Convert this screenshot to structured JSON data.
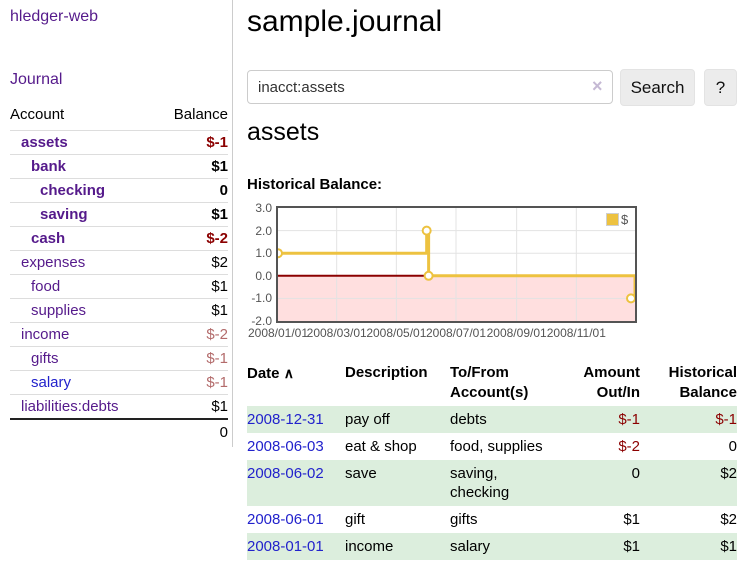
{
  "sidebar": {
    "brand": "hledger-web",
    "journal_label": "Journal",
    "accounts_table": {
      "headers": {
        "account": "Account",
        "balance": "Balance"
      },
      "rows": [
        {
          "name": "assets",
          "level": 1,
          "bold": true,
          "link_color": "purple",
          "balance": "$-1",
          "balance_color": "darkred"
        },
        {
          "name": "bank",
          "level": 2,
          "bold": true,
          "link_color": "purple",
          "balance": "$1",
          "balance_color": "black"
        },
        {
          "name": "checking",
          "level": 3,
          "bold": true,
          "link_color": "purple",
          "balance": "0",
          "balance_color": "black"
        },
        {
          "name": "saving",
          "level": 3,
          "bold": true,
          "link_color": "purple",
          "balance": "$1",
          "balance_color": "black"
        },
        {
          "name": "cash",
          "level": 2,
          "bold": true,
          "link_color": "purple",
          "balance": "$-2",
          "balance_color": "darkred"
        },
        {
          "name": "expenses",
          "level": 1,
          "bold": false,
          "link_color": "purple",
          "balance": "$2",
          "balance_color": "black"
        },
        {
          "name": "food",
          "level": 2,
          "bold": false,
          "link_color": "purple",
          "balance": "$1",
          "balance_color": "black"
        },
        {
          "name": "supplies",
          "level": 2,
          "bold": false,
          "link_color": "purple",
          "balance": "$1",
          "balance_color": "black"
        },
        {
          "name": "income",
          "level": 1,
          "bold": false,
          "link_color": "purple",
          "balance": "$-2",
          "balance_color": "rosy"
        },
        {
          "name": "gifts",
          "level": 2,
          "bold": false,
          "link_color": "purple",
          "balance": "$-1",
          "balance_color": "rosy"
        },
        {
          "name": "salary",
          "level": 2,
          "bold": false,
          "link_color": "blue",
          "balance": "$-1",
          "balance_color": "rosy"
        },
        {
          "name": "liabilities:debts",
          "level": 1,
          "bold": false,
          "link_color": "purple",
          "balance": "$1",
          "balance_color": "black"
        }
      ],
      "total": "0"
    }
  },
  "main": {
    "title": "sample.journal",
    "search": {
      "value": "inacct:assets",
      "clear_icon": "×",
      "button_label": "Search",
      "help_label": "?"
    },
    "account_heading": "assets",
    "chart_label": "Historical Balance:",
    "register": {
      "headers": [
        "Date",
        "Description",
        "To/From Account(s)",
        "Amount Out/In",
        "Historical Balance"
      ],
      "sort_icon": "∧",
      "rows": [
        {
          "date": "2008-12-31",
          "description": "pay off",
          "tofrom": "debts",
          "amount": "$-1",
          "amount_neg": true,
          "balance": "$-1",
          "balance_neg": true,
          "shaded": true
        },
        {
          "date": "2008-06-03",
          "description": "eat & shop",
          "tofrom": "food, supplies",
          "amount": "$-2",
          "amount_neg": true,
          "balance": "0",
          "balance_neg": false,
          "shaded": false
        },
        {
          "date": "2008-06-02",
          "description": "save",
          "tofrom": "saving, checking",
          "amount": "0",
          "amount_neg": false,
          "balance": "$2",
          "balance_neg": false,
          "shaded": true
        },
        {
          "date": "2008-06-01",
          "description": "gift",
          "tofrom": "gifts",
          "amount": "$1",
          "amount_neg": false,
          "balance": "$2",
          "balance_neg": false,
          "shaded": false
        },
        {
          "date": "2008-01-01",
          "description": "income",
          "tofrom": "salary",
          "amount": "$1",
          "amount_neg": false,
          "balance": "$1",
          "balance_neg": false,
          "shaded": true
        }
      ]
    }
  },
  "chart_data": {
    "type": "line",
    "title": "Historical Balance:",
    "legend": [
      {
        "label": "$",
        "color": "#edc240"
      }
    ],
    "series": [
      {
        "name": "$",
        "color": "#edc240",
        "step": true,
        "points": [
          [
            "2008-01-01",
            1
          ],
          [
            "2008-06-01",
            2
          ],
          [
            "2008-06-03",
            0
          ],
          [
            "2008-12-31",
            -1
          ]
        ]
      }
    ],
    "x_range": [
      "2008-01-01",
      "2008-12-31"
    ],
    "ylim": [
      -2,
      3
    ],
    "x_ticks": [
      "2008/01/01",
      "2008/03/01",
      "2008/05/01",
      "2008/07/01",
      "2008/09/01",
      "2008/11/01"
    ],
    "y_ticks": [
      "3.0",
      "2.0",
      "1.0",
      "0.0",
      "-1.0",
      "-2.0"
    ],
    "grid": true,
    "legend_position": "top-right",
    "zero_line_color": "#8b0000",
    "negative_region_color": "#ffdfdf"
  }
}
